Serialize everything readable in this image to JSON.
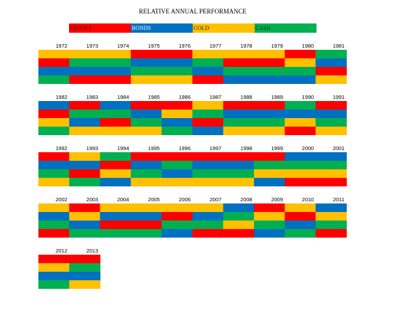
{
  "chart_data": {
    "type": "table",
    "title": "RELATIVE ANNUAL PERFORMANCE",
    "legend": [
      {
        "key": "S",
        "label": "STOCKS",
        "color": "#ff0000",
        "text_color": "#4a0000"
      },
      {
        "key": "B",
        "label": "BONDS",
        "color": "#0070c0",
        "text_color": "#ffffff"
      },
      {
        "key": "G",
        "label": "GOLD",
        "color": "#ffc000",
        "text_color": "#3a2a00"
      },
      {
        "key": "C",
        "label": "CASH",
        "color": "#00b050",
        "text_color": "#003314"
      }
    ],
    "row_order": "best to worst (top to bottom)",
    "years": [
      {
        "year": "1972",
        "ranks": [
          "G",
          "S",
          "B",
          "C"
        ]
      },
      {
        "year": "1973",
        "ranks": [
          "G",
          "C",
          "B",
          "S"
        ]
      },
      {
        "year": "1974",
        "ranks": [
          "G",
          "C",
          "B",
          "S"
        ]
      },
      {
        "year": "1975",
        "ranks": [
          "S",
          "B",
          "C",
          "G"
        ]
      },
      {
        "year": "1976",
        "ranks": [
          "S",
          "B",
          "C",
          "G"
        ]
      },
      {
        "year": "1977",
        "ranks": [
          "G",
          "C",
          "B",
          "S"
        ]
      },
      {
        "year": "1978",
        "ranks": [
          "G",
          "S",
          "C",
          "B"
        ]
      },
      {
        "year": "1979",
        "ranks": [
          "G",
          "S",
          "C",
          "B"
        ]
      },
      {
        "year": "1980",
        "ranks": [
          "S",
          "G",
          "C",
          "B"
        ]
      },
      {
        "year": "1981",
        "ranks": [
          "C",
          "B",
          "S",
          "G"
        ]
      },
      {
        "year": "1982",
        "ranks": [
          "B",
          "S",
          "G",
          "C"
        ]
      },
      {
        "year": "1983",
        "ranks": [
          "S",
          "C",
          "B",
          "G"
        ]
      },
      {
        "year": "1984",
        "ranks": [
          "B",
          "C",
          "S",
          "G"
        ]
      },
      {
        "year": "1985",
        "ranks": [
          "S",
          "B",
          "C",
          "G"
        ]
      },
      {
        "year": "1986",
        "ranks": [
          "S",
          "G",
          "B",
          "C"
        ]
      },
      {
        "year": "1987",
        "ranks": [
          "G",
          "C",
          "S",
          "B"
        ]
      },
      {
        "year": "1988",
        "ranks": [
          "S",
          "B",
          "C",
          "G"
        ]
      },
      {
        "year": "1989",
        "ranks": [
          "S",
          "B",
          "C",
          "G"
        ]
      },
      {
        "year": "1990",
        "ranks": [
          "C",
          "B",
          "G",
          "S"
        ]
      },
      {
        "year": "1991",
        "ranks": [
          "S",
          "B",
          "C",
          "G"
        ]
      },
      {
        "year": "1992",
        "ranks": [
          "S",
          "B",
          "C",
          "G"
        ]
      },
      {
        "year": "1993",
        "ranks": [
          "G",
          "B",
          "S",
          "C"
        ]
      },
      {
        "year": "1994",
        "ranks": [
          "C",
          "S",
          "G",
          "B"
        ]
      },
      {
        "year": "1995",
        "ranks": [
          "S",
          "B",
          "C",
          "G"
        ]
      },
      {
        "year": "1996",
        "ranks": [
          "S",
          "C",
          "B",
          "G"
        ]
      },
      {
        "year": "1997",
        "ranks": [
          "S",
          "B",
          "C",
          "G"
        ]
      },
      {
        "year": "1998",
        "ranks": [
          "S",
          "B",
          "C",
          "G"
        ]
      },
      {
        "year": "1999",
        "ranks": [
          "S",
          "C",
          "G",
          "B"
        ]
      },
      {
        "year": "2000",
        "ranks": [
          "B",
          "C",
          "G",
          "S"
        ]
      },
      {
        "year": "2001",
        "ranks": [
          "B",
          "C",
          "G",
          "S"
        ]
      },
      {
        "year": "2002",
        "ranks": [
          "G",
          "B",
          "C",
          "S"
        ]
      },
      {
        "year": "2003",
        "ranks": [
          "S",
          "G",
          "B",
          "C"
        ]
      },
      {
        "year": "2004",
        "ranks": [
          "G",
          "B",
          "S",
          "C"
        ]
      },
      {
        "year": "2005",
        "ranks": [
          "G",
          "B",
          "S",
          "C"
        ]
      },
      {
        "year": "2006",
        "ranks": [
          "G",
          "S",
          "C",
          "B"
        ]
      },
      {
        "year": "2007",
        "ranks": [
          "G",
          "B",
          "C",
          "S"
        ]
      },
      {
        "year": "2008",
        "ranks": [
          "B",
          "C",
          "G",
          "S"
        ]
      },
      {
        "year": "2009",
        "ranks": [
          "S",
          "G",
          "C",
          "B"
        ]
      },
      {
        "year": "2010",
        "ranks": [
          "G",
          "S",
          "B",
          "C"
        ]
      },
      {
        "year": "2011",
        "ranks": [
          "B",
          "G",
          "C",
          "S"
        ]
      },
      {
        "year": "2012",
        "ranks": [
          "S",
          "G",
          "B",
          "C"
        ]
      },
      {
        "year": "2013",
        "ranks": [
          "S",
          "C",
          "B",
          "G"
        ]
      }
    ]
  }
}
